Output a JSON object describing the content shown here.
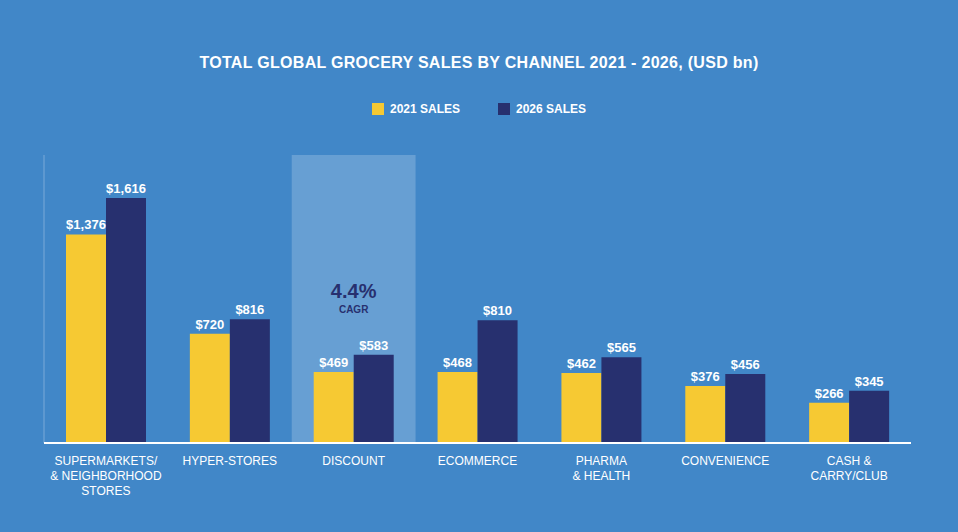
{
  "chart_data": {
    "type": "bar",
    "title": "TOTAL GLOBAL GROCERY SALES BY CHANNEL 2021 - 2026, (USD bn)",
    "categories": [
      "SUPERMARKETS/\n& NEIGHBORHOOD\nSTORES",
      "HYPER-STORES",
      "DISCOUNT",
      "ECOMMERCE",
      "PHARMA\n& HEALTH",
      "CONVENIENCE",
      "CASH &\nCARRY/CLUB"
    ],
    "series": [
      {
        "name": "2021 SALES",
        "color": "#f6c933",
        "values": [
          1376,
          720,
          469,
          468,
          462,
          376,
          266
        ],
        "value_labels": [
          "$1,376",
          "$720",
          "$469",
          "$468",
          "$462",
          "$376",
          "$266"
        ]
      },
      {
        "name": "2026 SALES",
        "color": "#27306f",
        "values": [
          1616,
          816,
          583,
          810,
          565,
          456,
          345
        ],
        "value_labels": [
          "$1,616",
          "$816",
          "$583",
          "$810",
          "$565",
          "$456",
          "$345"
        ]
      }
    ],
    "ylim": [
      0,
      1900
    ],
    "grid": false,
    "legend": "top",
    "data_labels": true,
    "tick_labels": "x",
    "annotations": [
      {
        "category": "DISCOUNT",
        "text": "4.4%",
        "subtext": "CAGR"
      }
    ]
  }
}
